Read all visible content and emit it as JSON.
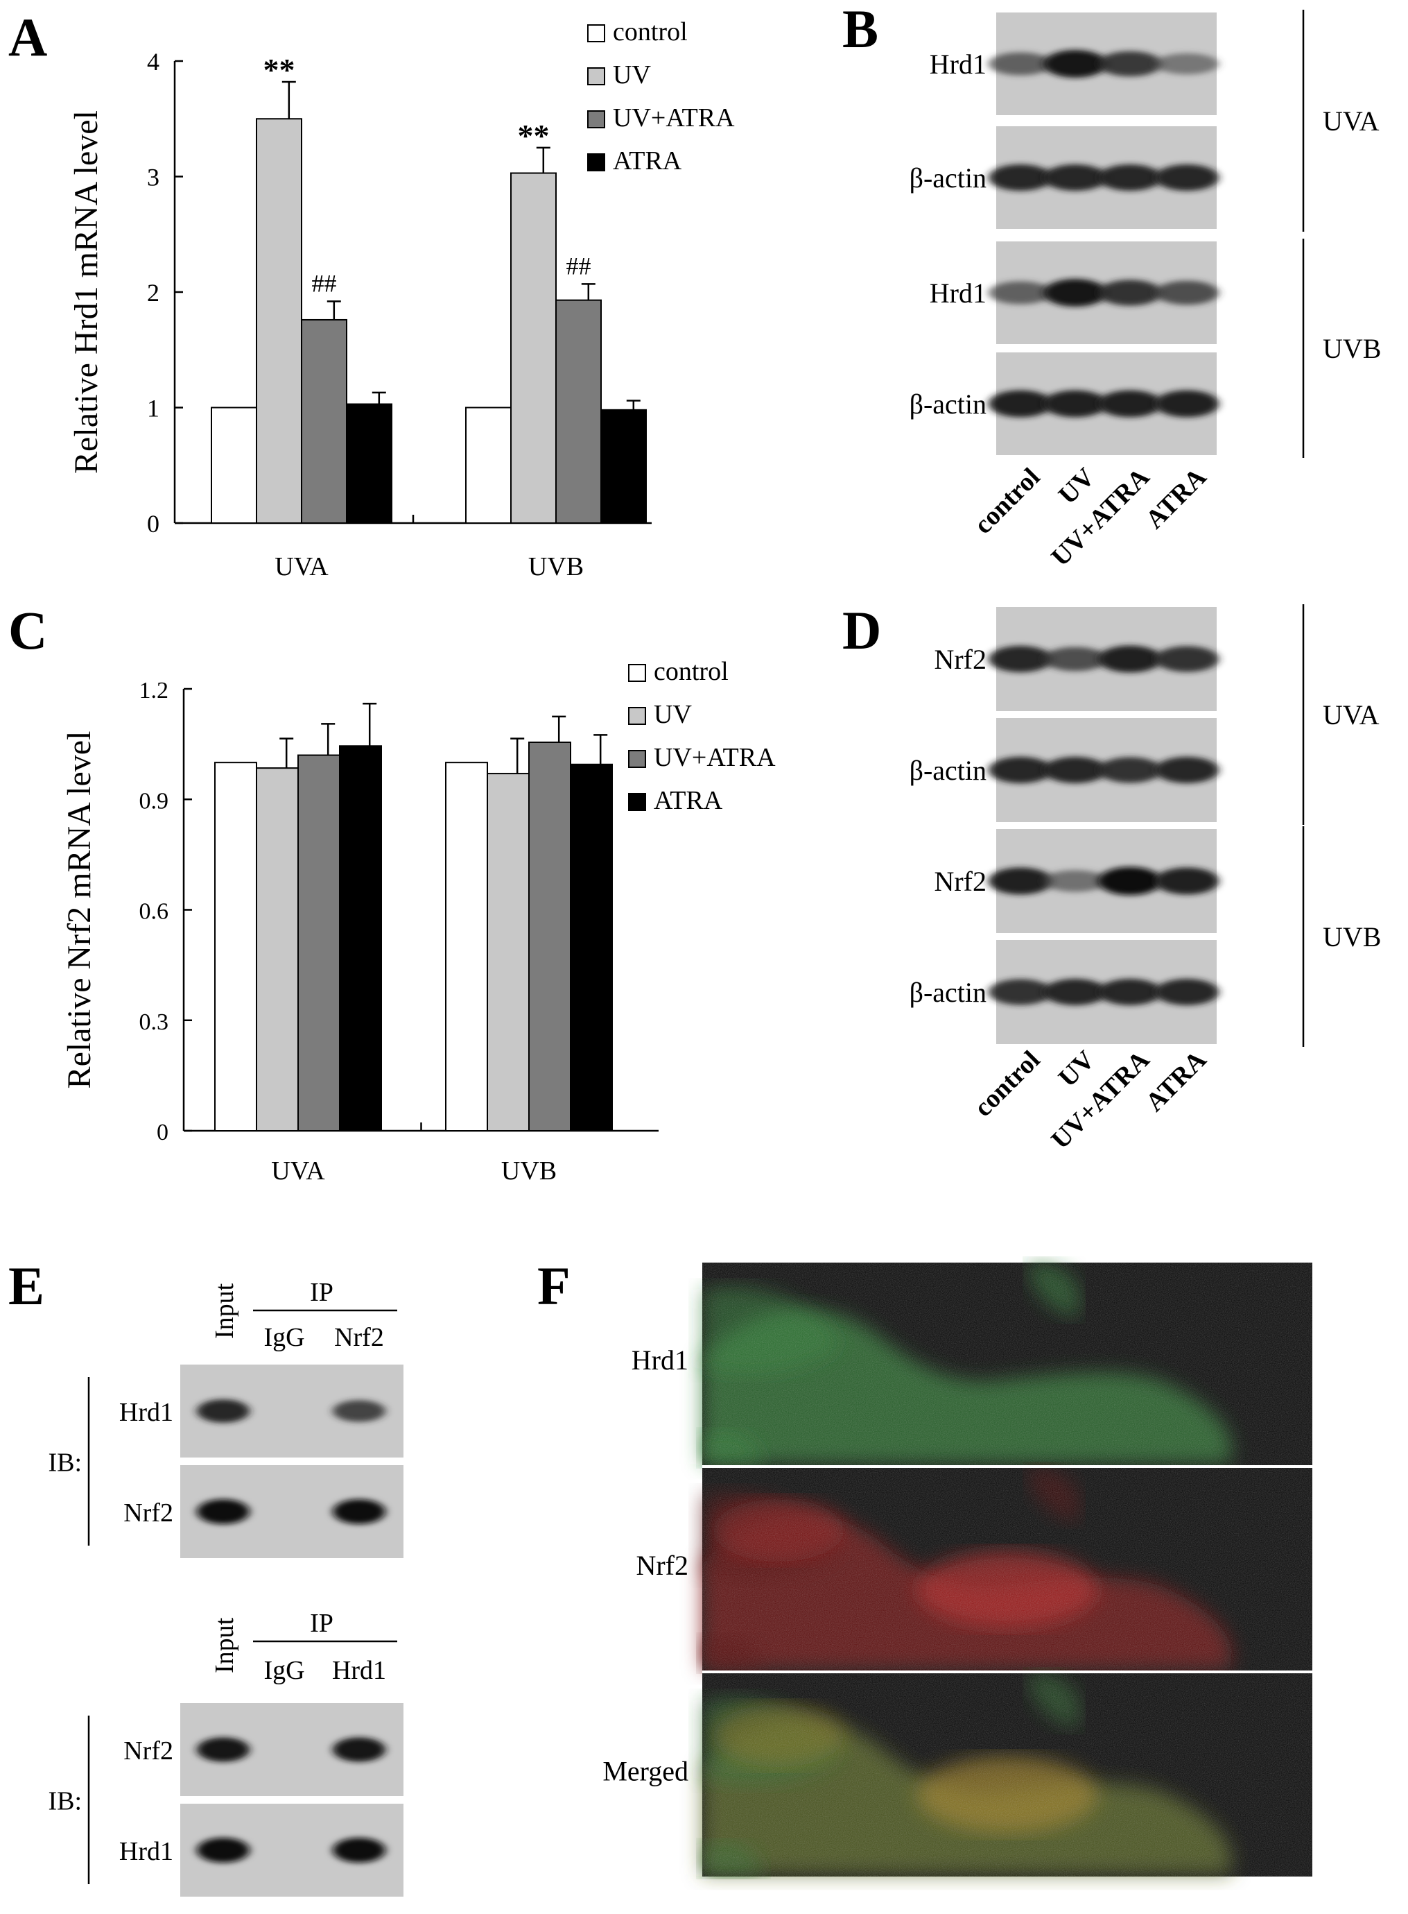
{
  "panels": {
    "A": "A",
    "B": "B",
    "C": "C",
    "D": "D",
    "E": "E",
    "F": "F"
  },
  "chart_data": [
    {
      "panel": "A",
      "type": "bar",
      "ylabel": "Relative Hrd1 mRNA level",
      "xlabel": "",
      "categories": [
        "UVA",
        "UVB"
      ],
      "ylim": [
        0,
        4
      ],
      "yticks": [
        "0",
        "1",
        "2",
        "3",
        "4"
      ],
      "series": [
        {
          "name": "control",
          "color": "#ffffff",
          "values": [
            1.0,
            1.0
          ],
          "errors": [
            0,
            0
          ]
        },
        {
          "name": "UV",
          "color": "#c8c8c8",
          "values": [
            3.5,
            3.03
          ],
          "errors": [
            0.32,
            0.22
          ]
        },
        {
          "name": "UV+ATRA",
          "color": "#7c7c7c",
          "values": [
            1.76,
            1.93
          ],
          "errors": [
            0.16,
            0.14
          ]
        },
        {
          "name": "ATRA",
          "color": "#000000",
          "values": [
            1.03,
            0.98
          ],
          "errors": [
            0.1,
            0.08
          ]
        }
      ],
      "annotations": [
        {
          "group": 0,
          "series": 1,
          "text": "**"
        },
        {
          "group": 0,
          "series": 2,
          "text": "##"
        },
        {
          "group": 1,
          "series": 1,
          "text": "**"
        },
        {
          "group": 1,
          "series": 2,
          "text": "##"
        }
      ],
      "legend": "top-right"
    },
    {
      "panel": "C",
      "type": "bar",
      "ylabel": "Relative Nrf2 mRNA level",
      "xlabel": "",
      "categories": [
        "UVA",
        "UVB"
      ],
      "ylim": [
        0,
        1.2
      ],
      "yticks": [
        "0",
        "0.3",
        "0.6",
        "0.9",
        "1.2"
      ],
      "series": [
        {
          "name": "control",
          "color": "#ffffff",
          "values": [
            1.0,
            1.0
          ],
          "errors": [
            0,
            0
          ]
        },
        {
          "name": "UV",
          "color": "#c8c8c8",
          "values": [
            0.985,
            0.97
          ],
          "errors": [
            0.08,
            0.095
          ]
        },
        {
          "name": "UV+ATRA",
          "color": "#7c7c7c",
          "values": [
            1.02,
            1.055
          ],
          "errors": [
            0.085,
            0.07
          ]
        },
        {
          "name": "ATRA",
          "color": "#000000",
          "values": [
            1.045,
            0.995
          ],
          "errors": [
            0.115,
            0.08
          ]
        }
      ],
      "annotations": [],
      "legend": "top-right"
    }
  ],
  "blots": {
    "B": {
      "rows": [
        {
          "label": "Hrd1",
          "intensity": [
            0.55,
            0.95,
            0.75,
            0.4
          ]
        },
        {
          "label": "β-actin",
          "intensity": [
            0.85,
            0.85,
            0.85,
            0.85
          ]
        },
        {
          "label": "Hrd1",
          "intensity": [
            0.55,
            0.95,
            0.8,
            0.65
          ]
        },
        {
          "label": "β-actin",
          "intensity": [
            0.9,
            0.9,
            0.9,
            0.9
          ]
        }
      ],
      "groups": [
        "UVA",
        "UVB"
      ],
      "lanes": [
        "control",
        "UV",
        "UV+ATRA",
        "ATRA"
      ]
    },
    "D": {
      "rows": [
        {
          "label": "Nrf2",
          "intensity": [
            0.85,
            0.65,
            0.9,
            0.8
          ]
        },
        {
          "label": "β-actin",
          "intensity": [
            0.85,
            0.85,
            0.8,
            0.85
          ]
        },
        {
          "label": "Nrf2",
          "intensity": [
            0.9,
            0.45,
            1.0,
            0.9
          ]
        },
        {
          "label": "β-actin",
          "intensity": [
            0.8,
            0.85,
            0.85,
            0.85
          ]
        }
      ],
      "groups": [
        "UVA",
        "UVB"
      ],
      "lanes": [
        "control",
        "UV",
        "UV+ATRA",
        "ATRA"
      ]
    },
    "E_top": {
      "lanes": [
        "Input",
        "IgG",
        "Nrf2"
      ],
      "ip_label": "IP",
      "ib_label": "IB:",
      "rows": [
        {
          "label": "Hrd1",
          "intensity": [
            0.85,
            0.0,
            0.7
          ]
        },
        {
          "label": "Nrf2",
          "intensity": [
            1.0,
            0.0,
            1.0
          ]
        }
      ]
    },
    "E_bottom": {
      "lanes": [
        "Input",
        "IgG",
        "Hrd1"
      ],
      "ip_label": "IP",
      "ib_label": "IB:",
      "rows": [
        {
          "label": "Nrf2",
          "intensity": [
            0.95,
            0.0,
            0.95
          ]
        },
        {
          "label": "Hrd1",
          "intensity": [
            1.0,
            0.0,
            1.0
          ]
        }
      ]
    }
  },
  "microscopy": {
    "rows": [
      {
        "label": "Hrd1",
        "channel": "green"
      },
      {
        "label": "Nrf2",
        "channel": "red"
      },
      {
        "label": "Merged",
        "channel": "merged"
      }
    ]
  }
}
